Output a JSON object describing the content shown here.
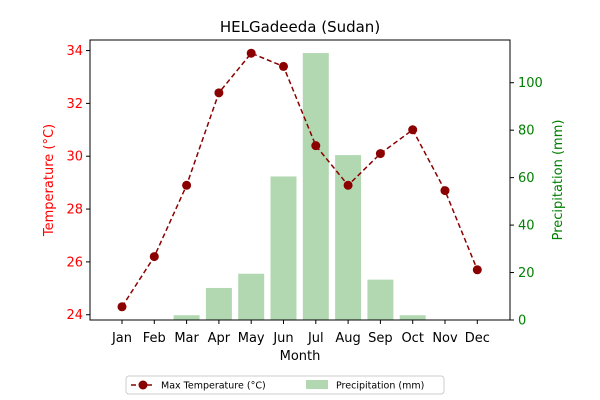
{
  "chart_data": {
    "type": "bar+line",
    "title": "HELGadeeda (Sudan)",
    "xlabel": "Month",
    "categories": [
      "Jan",
      "Feb",
      "Mar",
      "Apr",
      "May",
      "Jun",
      "Jul",
      "Aug",
      "Sep",
      "Oct",
      "Nov",
      "Dec"
    ],
    "left_axis": {
      "label": "Temperature (°C)",
      "color": "#ff0000",
      "ylim": [
        23.8,
        34.4
      ],
      "ticks": [
        24,
        26,
        28,
        30,
        32,
        34
      ]
    },
    "right_axis": {
      "label": "Precipitation (mm)",
      "color": "#008000",
      "ylim": [
        0,
        118
      ],
      "ticks": [
        0,
        20,
        40,
        60,
        80,
        100
      ]
    },
    "series": [
      {
        "name": "Max Temperature (°C)",
        "type": "line",
        "axis": "left",
        "color": "#8b0000",
        "style": "dashed",
        "marker": "circle",
        "values": [
          24.3,
          26.2,
          28.9,
          32.4,
          33.9,
          33.4,
          30.4,
          28.9,
          30.1,
          31.0,
          28.7,
          25.7
        ]
      },
      {
        "name": "Precipitation (mm)",
        "type": "bar",
        "axis": "right",
        "color": "#b2d8b2",
        "values": [
          0,
          0,
          2,
          13.5,
          19.5,
          60.5,
          112.5,
          69.5,
          17,
          2,
          0,
          0
        ]
      }
    ],
    "legend": {
      "placement": "bottom-center",
      "entries": [
        "Max Temperature (°C)",
        "Precipitation (mm)"
      ]
    },
    "grid": false
  }
}
